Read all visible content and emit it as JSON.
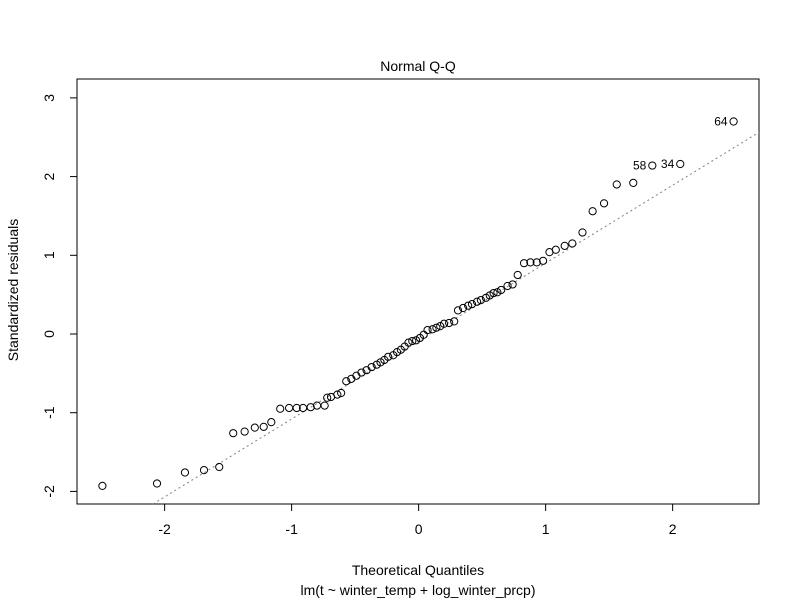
{
  "chart_data": {
    "type": "scatter",
    "title": "Normal Q-Q",
    "xlabel": "Theoretical Quantiles",
    "ylabel": "Standardized residuals",
    "subtitle": "lm(t ~ winter_temp + log_winter_prcp)",
    "xlim": [
      -2.69,
      2.68
    ],
    "ylim": [
      -2.16,
      3.24
    ],
    "xticks": [
      -2,
      -1,
      0,
      1,
      2
    ],
    "xtick_labels": [
      "-2",
      "-1",
      "0",
      "1",
      "2"
    ],
    "yticks": [
      -2,
      -1,
      0,
      1,
      2,
      3
    ],
    "ytick_labels": [
      "-2",
      "-1",
      "0",
      "1",
      "2",
      "3"
    ],
    "grid": false,
    "reference_line": {
      "slope": 0.99,
      "intercept": -0.09,
      "style": "dotted",
      "color": "#808080"
    },
    "points": [
      [
        -2.49,
        -1.93
      ],
      [
        -2.06,
        -1.9
      ],
      [
        -1.84,
        -1.76
      ],
      [
        -1.69,
        -1.73
      ],
      [
        -1.57,
        -1.69
      ],
      [
        -1.46,
        -1.26
      ],
      [
        -1.37,
        -1.24
      ],
      [
        -1.29,
        -1.19
      ],
      [
        -1.22,
        -1.18
      ],
      [
        -1.16,
        -1.12
      ],
      [
        -1.09,
        -0.95
      ],
      [
        -1.02,
        -0.94
      ],
      [
        -0.96,
        -0.94
      ],
      [
        -0.91,
        -0.94
      ],
      [
        -0.85,
        -0.93
      ],
      [
        -0.8,
        -0.91
      ],
      [
        -0.74,
        -0.91
      ],
      [
        -0.72,
        -0.81
      ],
      [
        -0.69,
        -0.8
      ],
      [
        -0.64,
        -0.77
      ],
      [
        -0.61,
        -0.75
      ],
      [
        -0.57,
        -0.6
      ],
      [
        -0.53,
        -0.57
      ],
      [
        -0.49,
        -0.53
      ],
      [
        -0.45,
        -0.49
      ],
      [
        -0.41,
        -0.46
      ],
      [
        -0.37,
        -0.42
      ],
      [
        -0.33,
        -0.39
      ],
      [
        -0.3,
        -0.36
      ],
      [
        -0.27,
        -0.33
      ],
      [
        -0.24,
        -0.29
      ],
      [
        -0.2,
        -0.27
      ],
      [
        -0.17,
        -0.23
      ],
      [
        -0.14,
        -0.2
      ],
      [
        -0.11,
        -0.16
      ],
      [
        -0.08,
        -0.11
      ],
      [
        -0.05,
        -0.09
      ],
      [
        -0.02,
        -0.08
      ],
      [
        0.01,
        -0.05
      ],
      [
        0.04,
        -0.01
      ],
      [
        0.07,
        0.05
      ],
      [
        0.11,
        0.06
      ],
      [
        0.14,
        0.08
      ],
      [
        0.17,
        0.1
      ],
      [
        0.2,
        0.13
      ],
      [
        0.24,
        0.14
      ],
      [
        0.28,
        0.16
      ],
      [
        0.31,
        0.3
      ],
      [
        0.35,
        0.33
      ],
      [
        0.39,
        0.36
      ],
      [
        0.42,
        0.38
      ],
      [
        0.46,
        0.41
      ],
      [
        0.49,
        0.43
      ],
      [
        0.53,
        0.46
      ],
      [
        0.56,
        0.49
      ],
      [
        0.59,
        0.52
      ],
      [
        0.62,
        0.53
      ],
      [
        0.65,
        0.56
      ],
      [
        0.7,
        0.61
      ],
      [
        0.74,
        0.63
      ],
      [
        0.78,
        0.75
      ],
      [
        0.83,
        0.9
      ],
      [
        0.88,
        0.91
      ],
      [
        0.93,
        0.91
      ],
      [
        0.98,
        0.93
      ],
      [
        1.03,
        1.04
      ],
      [
        1.08,
        1.07
      ],
      [
        1.15,
        1.12
      ],
      [
        1.21,
        1.15
      ],
      [
        1.29,
        1.29
      ],
      [
        1.37,
        1.56
      ],
      [
        1.46,
        1.66
      ],
      [
        1.56,
        1.9
      ],
      [
        1.69,
        1.92
      ],
      [
        1.84,
        2.14
      ],
      [
        2.06,
        2.16
      ],
      [
        2.48,
        2.7
      ]
    ],
    "labeled_points": [
      {
        "label": "58",
        "x": 1.84,
        "y": 2.14
      },
      {
        "label": "34",
        "x": 2.06,
        "y": 2.16
      },
      {
        "label": "64",
        "x": 2.48,
        "y": 2.7
      }
    ]
  }
}
